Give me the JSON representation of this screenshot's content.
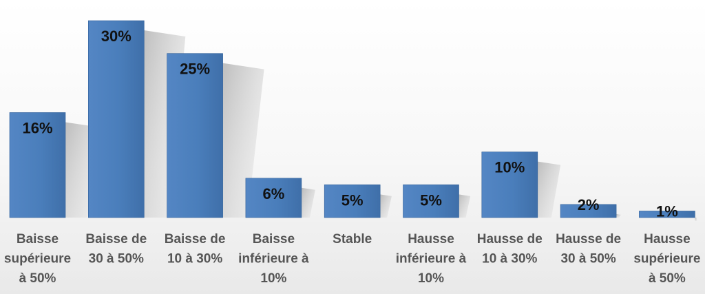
{
  "chart_data": {
    "type": "bar",
    "categories": [
      [
        "Baisse",
        "supérieure",
        "à 50%"
      ],
      [
        "Baisse de",
        "30 à 50%"
      ],
      [
        "Baisse de",
        "10 à 30%"
      ],
      [
        "Baisse",
        "inférieure à",
        "10%"
      ],
      [
        "Stable"
      ],
      [
        "Hausse",
        "inférieure à",
        "10%"
      ],
      [
        "Hausse de",
        "10 à 30%"
      ],
      [
        "Hausse de",
        "30 à 50%"
      ],
      [
        "Hausse",
        "supérieure",
        "à 50%"
      ]
    ],
    "values": [
      16,
      30,
      25,
      6,
      5,
      5,
      10,
      2,
      1
    ],
    "value_labels": [
      "16%",
      "30%",
      "25%",
      "6%",
      "5%",
      "5%",
      "10%",
      "2%",
      "1%"
    ],
    "ylim": [
      0,
      30
    ],
    "grid": false,
    "legend": "none",
    "bar_color": "#4a7ebb",
    "bar_color_dark": "#2f5f99",
    "shadow_color": "#9a9a9a"
  }
}
